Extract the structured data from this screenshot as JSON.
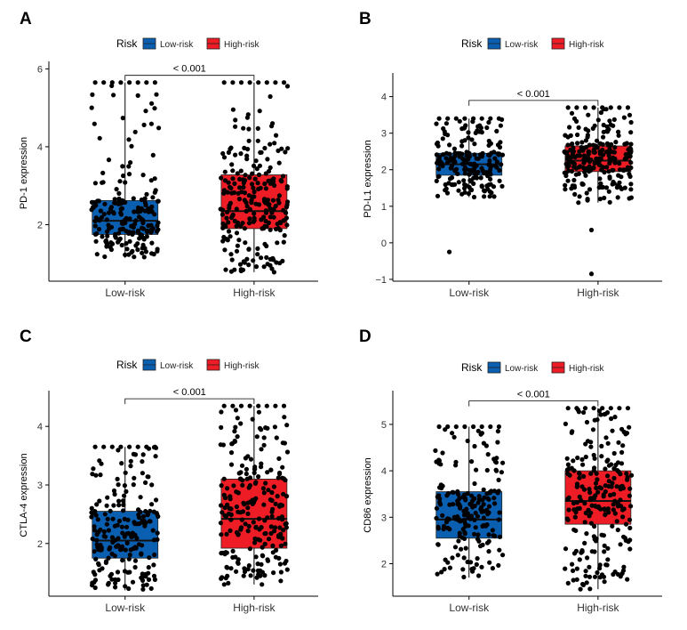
{
  "chart_data": [
    {
      "panel": "A",
      "type": "box",
      "title": "",
      "legend": {
        "title": "Risk",
        "items": [
          "Low-risk",
          "High-risk"
        ],
        "position": "top"
      },
      "colors": {
        "Low-risk": "#0b5fb0",
        "High-risk": "#ee1c25"
      },
      "ylabel": "PD-1 expression",
      "xlabel": "",
      "ylim": [
        0.55,
        6.1
      ],
      "yticks": [
        2,
        4,
        6
      ],
      "categories": [
        "Low-risk",
        "High-risk"
      ],
      "boxes": [
        {
          "name": "Low-risk",
          "q1": 1.75,
          "median": 2.1,
          "q3": 2.62,
          "whisker_low": 1.15,
          "whisker_high": 5.65,
          "n": 200
        },
        {
          "name": "High-risk",
          "q1": 1.9,
          "median": 2.35,
          "q3": 3.28,
          "whisker_low": 0.78,
          "whisker_high": 5.65,
          "n": 230
        }
      ],
      "pvalue": "< 0.001"
    },
    {
      "panel": "B",
      "type": "box",
      "title": "",
      "legend": {
        "title": "Risk",
        "items": [
          "Low-risk",
          "High-risk"
        ],
        "position": "top"
      },
      "colors": {
        "Low-risk": "#0b5fb0",
        "High-risk": "#ee1c25"
      },
      "ylabel": "PD-L1 expression",
      "xlabel": "",
      "ylim": [
        -1.05,
        4.55
      ],
      "yticks": [
        -1,
        0,
        1,
        2,
        3,
        4
      ],
      "categories": [
        "Low-risk",
        "High-risk"
      ],
      "boxes": [
        {
          "name": "Low-risk",
          "q1": 1.85,
          "median": 2.15,
          "q3": 2.45,
          "whisker_low": 1.25,
          "whisker_high": 3.4,
          "n": 200
        },
        {
          "name": "High-risk",
          "q1": 1.95,
          "median": 2.25,
          "q3": 2.65,
          "whisker_low": 1.1,
          "whisker_high": 3.7,
          "n": 230
        }
      ],
      "outliers": [
        [
          -0.25,
          0
        ],
        [
          0.35,
          1
        ],
        [
          -0.85,
          1
        ]
      ],
      "pvalue": "< 0.001"
    },
    {
      "panel": "C",
      "type": "box",
      "title": "",
      "legend": {
        "title": "Risk",
        "items": [
          "Low-risk",
          "High-risk"
        ],
        "position": "top"
      },
      "colors": {
        "Low-risk": "#0b5fb0",
        "High-risk": "#ee1c25"
      },
      "ylabel": "CTLA-4 expression",
      "xlabel": "",
      "ylim": [
        1.1,
        4.55
      ],
      "yticks": [
        2,
        3,
        4
      ],
      "categories": [
        "Low-risk",
        "High-risk"
      ],
      "boxes": [
        {
          "name": "Low-risk",
          "q1": 1.75,
          "median": 2.05,
          "q3": 2.55,
          "whisker_low": 1.2,
          "whisker_high": 3.65,
          "n": 200
        },
        {
          "name": "High-risk",
          "q1": 1.92,
          "median": 2.42,
          "q3": 3.1,
          "whisker_low": 1.3,
          "whisker_high": 4.35,
          "n": 230
        }
      ],
      "pvalue": "< 0.001"
    },
    {
      "panel": "D",
      "type": "box",
      "title": "",
      "legend": {
        "title": "Risk",
        "items": [
          "Low-risk",
          "High-risk"
        ],
        "position": "top"
      },
      "colors": {
        "Low-risk": "#0b5fb0",
        "High-risk": "#ee1c25"
      },
      "ylabel": "CD86 expression",
      "xlabel": "",
      "ylim": [
        1.3,
        5.65
      ],
      "yticks": [
        2,
        3,
        4,
        5
      ],
      "categories": [
        "Low-risk",
        "High-risk"
      ],
      "boxes": [
        {
          "name": "Low-risk",
          "q1": 2.55,
          "median": 2.95,
          "q3": 3.55,
          "whisker_low": 1.7,
          "whisker_high": 4.95,
          "n": 200
        },
        {
          "name": "High-risk",
          "q1": 2.85,
          "median": 3.35,
          "q3": 4.0,
          "whisker_low": 1.45,
          "whisker_high": 5.35,
          "n": 230
        }
      ],
      "pvalue": "< 0.001"
    }
  ]
}
